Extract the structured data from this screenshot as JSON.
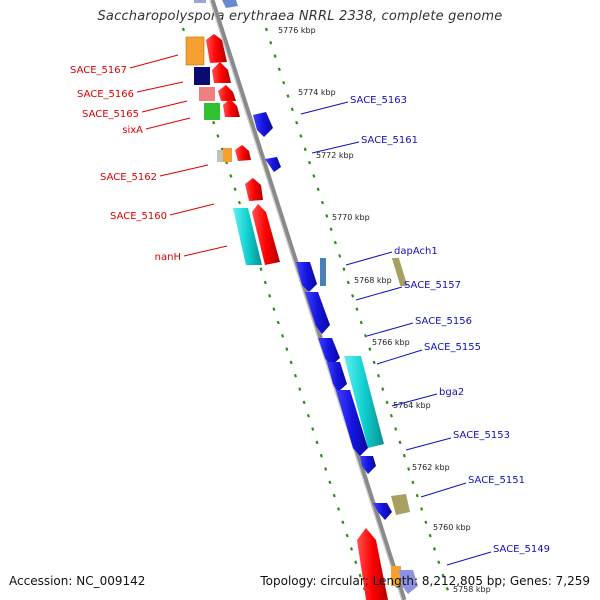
{
  "title": "Saccharopolyspora erythraea NRRL 2338, complete genome",
  "footer": {
    "accession": "Accession: NC_009142",
    "topology": "Topology: circular; Length: 8,212,805 bp; Genes: 7,259"
  },
  "colors": {
    "backbone": "#8a8a8a",
    "ruler": "#2e8b1a",
    "left_label": "#e00000",
    "right_label": "#1010c0",
    "forward_gene": "#ff0000",
    "reverse_gene": "#1515e0",
    "cyan_gene": "#10d0d0",
    "orange_gene": "#f5a030",
    "navy_gene": "#0a0a70",
    "pink_gene": "#f08080",
    "green_gene": "#30c030",
    "olive_gene": "#a8a060",
    "steel_gene": "#4682b4",
    "grey_gene": "#c0c0c0"
  },
  "kbp_marks": [
    "5776 kbp",
    "5774 kbp",
    "5772 kbp",
    "5770 kbp",
    "5768 kbp",
    "5766 kbp",
    "5764 kbp",
    "5762 kbp",
    "5760 kbp",
    "5758 kbp"
  ],
  "left_labels": [
    "SACE_5167",
    "SACE_5166",
    "SACE_5165",
    "sixA",
    "SACE_5162",
    "SACE_5160",
    "nanH"
  ],
  "right_labels": [
    "SACE_5163",
    "SACE_5161",
    "dapAch1",
    "SACE_5157",
    "SACE_5156",
    "SACE_5155",
    "bga2",
    "SACE_5153",
    "SACE_5151",
    "SACE_5149"
  ]
}
